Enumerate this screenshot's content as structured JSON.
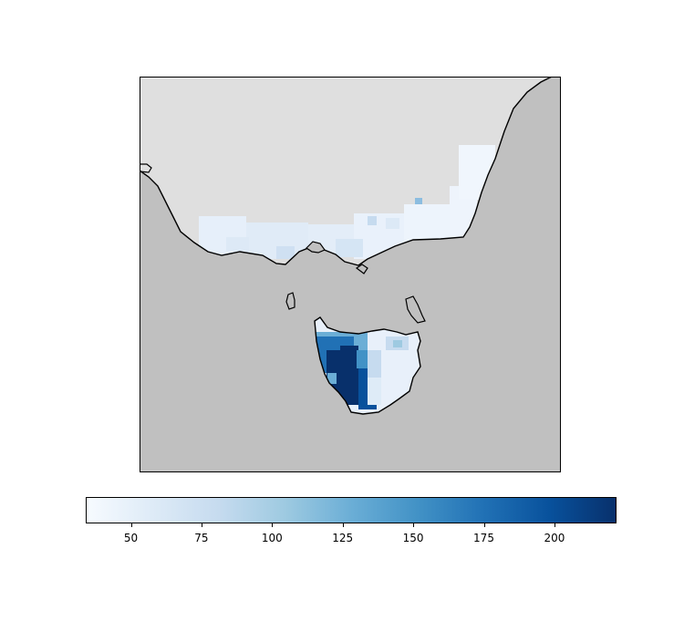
{
  "figure": {
    "colormap": "Blues",
    "colors": {
      "ocean": "#c0c0c0",
      "land_nodata": "#dfdfdf",
      "coastline": "#000000",
      "cmap_stops": [
        "#f7fbff",
        "#deebf7",
        "#c6dbef",
        "#9ecae1",
        "#6baed6",
        "#4292c6",
        "#2171b5",
        "#08519c",
        "#08306b"
      ]
    },
    "colorbar": {
      "orientation": "horizontal",
      "vmin": 34,
      "vmax": 222,
      "ticks": [
        50,
        75,
        100,
        125,
        150,
        175,
        200
      ],
      "tick_labels": [
        "50",
        "75",
        "100",
        "125",
        "150",
        "175",
        "200"
      ]
    }
  }
}
